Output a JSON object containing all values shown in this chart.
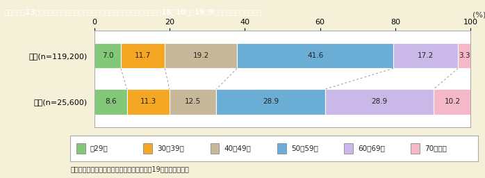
{
  "title": "第１－５－13図　介護・看護を理由に離職・転職した人の年齢構成割合（平成18年10月～19年9月に離職・転職した人）",
  "note": "（備考）総務省「就業構造基本調査」（平成19年）より作成。",
  "categories": [
    "女性(n=119,200)",
    "男性(n=25,600)"
  ],
  "segments": [
    "～29歳",
    "30～39歳",
    "40～49歳",
    "50～59歳",
    "60～69歳",
    "70歳以上"
  ],
  "values_female": [
    7.0,
    11.7,
    19.2,
    41.6,
    17.2,
    3.3
  ],
  "values_male": [
    8.6,
    11.3,
    12.5,
    28.9,
    28.9,
    10.2
  ],
  "colors": [
    "#82c878",
    "#f5a623",
    "#c8b89a",
    "#6aaed6",
    "#c9b8e8",
    "#f5b8c8"
  ],
  "bar_edge_colors": [
    "#5a9e52",
    "#c88010",
    "#a09070",
    "#4080b0",
    "#9080c0",
    "#d080a0"
  ],
  "bg_color": "#f5f0d8",
  "title_bg": "#b8a060",
  "bar_height": 0.55,
  "xlim": [
    0,
    100
  ],
  "xticks": [
    0,
    20,
    40,
    60,
    80,
    100
  ],
  "xlabel": "(%)",
  "font_size_title": 7.5,
  "font_size_bar": 7.5,
  "font_size_label": 8,
  "font_size_legend": 7.5,
  "font_size_note": 7,
  "font_size_tick": 8
}
